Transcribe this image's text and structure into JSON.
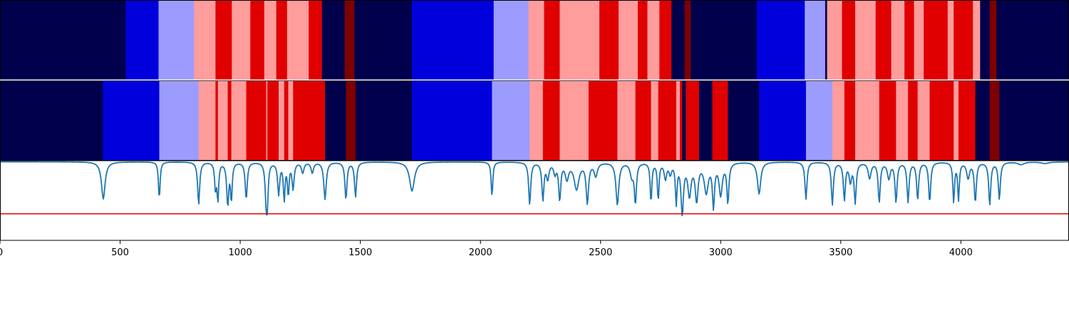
{
  "chart_data": [
    {
      "type": "heatmap",
      "title": "",
      "xlabel": "",
      "ylabel": "",
      "xlim": [
        0,
        4450
      ],
      "colors": {
        "0": "#00004c",
        "1": "#0000dd",
        "2": "#9c9cff",
        "3": "#ff9c9c",
        "4": "#e00000",
        "5": "#7f0000"
      },
      "segments": [
        [
          0,
          523,
          0
        ],
        [
          523,
          660,
          1
        ],
        [
          660,
          808,
          2
        ],
        [
          808,
          897,
          3
        ],
        [
          897,
          965,
          4
        ],
        [
          965,
          1042,
          3
        ],
        [
          1042,
          1100,
          4
        ],
        [
          1100,
          1150,
          3
        ],
        [
          1150,
          1195,
          4
        ],
        [
          1195,
          1285,
          3
        ],
        [
          1285,
          1340,
          4
        ],
        [
          1340,
          1435,
          0
        ],
        [
          1435,
          1475,
          5
        ],
        [
          1475,
          1715,
          0
        ],
        [
          1715,
          2055,
          1
        ],
        [
          2055,
          2200,
          2
        ],
        [
          2200,
          2265,
          3
        ],
        [
          2265,
          2330,
          4
        ],
        [
          2330,
          2495,
          3
        ],
        [
          2495,
          2575,
          4
        ],
        [
          2575,
          2655,
          3
        ],
        [
          2655,
          2695,
          4
        ],
        [
          2695,
          2745,
          3
        ],
        [
          2745,
          2795,
          4
        ],
        [
          2795,
          2850,
          0
        ],
        [
          2850,
          2875,
          5
        ],
        [
          2875,
          3150,
          0
        ],
        [
          3150,
          3350,
          1
        ],
        [
          3350,
          3435,
          2
        ],
        [
          3435,
          3443,
          0
        ],
        [
          3443,
          3505,
          3
        ],
        [
          3505,
          3560,
          4
        ],
        [
          3560,
          3645,
          3
        ],
        [
          3645,
          3710,
          4
        ],
        [
          3710,
          3765,
          3
        ],
        [
          3765,
          3805,
          4
        ],
        [
          3805,
          3845,
          3
        ],
        [
          3845,
          3945,
          4
        ],
        [
          3945,
          3970,
          3
        ],
        [
          3970,
          4050,
          4
        ],
        [
          4050,
          4080,
          3
        ],
        [
          4080,
          4120,
          0
        ],
        [
          4120,
          4148,
          5
        ],
        [
          4148,
          4450,
          0
        ]
      ]
    },
    {
      "type": "heatmap",
      "title": "",
      "xlabel": "",
      "ylabel": "",
      "xlim": [
        0,
        4450
      ],
      "segments": [
        [
          0,
          428,
          0
        ],
        [
          428,
          663,
          1
        ],
        [
          663,
          827,
          2
        ],
        [
          827,
          897,
          3
        ],
        [
          897,
          907,
          4
        ],
        [
          907,
          948,
          3
        ],
        [
          948,
          963,
          4
        ],
        [
          963,
          1025,
          3
        ],
        [
          1025,
          1108,
          4
        ],
        [
          1108,
          1113,
          3
        ],
        [
          1113,
          1160,
          4
        ],
        [
          1160,
          1183,
          3
        ],
        [
          1183,
          1200,
          4
        ],
        [
          1200,
          1220,
          3
        ],
        [
          1220,
          1353,
          4
        ],
        [
          1353,
          1440,
          0
        ],
        [
          1440,
          1480,
          5
        ],
        [
          1480,
          1715,
          0
        ],
        [
          1715,
          2048,
          1
        ],
        [
          2048,
          2205,
          2
        ],
        [
          2205,
          2260,
          3
        ],
        [
          2260,
          2330,
          4
        ],
        [
          2330,
          2450,
          3
        ],
        [
          2450,
          2570,
          4
        ],
        [
          2570,
          2645,
          3
        ],
        [
          2645,
          2710,
          4
        ],
        [
          2710,
          2740,
          3
        ],
        [
          2740,
          2815,
          4
        ],
        [
          2815,
          2830,
          3
        ],
        [
          2830,
          2840,
          4
        ],
        [
          2840,
          2855,
          0
        ],
        [
          2855,
          2910,
          4
        ],
        [
          2910,
          2965,
          0
        ],
        [
          2965,
          3030,
          4
        ],
        [
          3030,
          3160,
          0
        ],
        [
          3160,
          3355,
          1
        ],
        [
          3355,
          3465,
          2
        ],
        [
          3465,
          3515,
          3
        ],
        [
          3515,
          3560,
          4
        ],
        [
          3560,
          3660,
          3
        ],
        [
          3660,
          3730,
          4
        ],
        [
          3730,
          3780,
          3
        ],
        [
          3780,
          3820,
          4
        ],
        [
          3820,
          3870,
          3
        ],
        [
          3870,
          3970,
          4
        ],
        [
          3970,
          3990,
          3
        ],
        [
          3990,
          4060,
          4
        ],
        [
          4060,
          4120,
          0
        ],
        [
          4120,
          4160,
          5
        ],
        [
          4160,
          4450,
          0
        ]
      ]
    },
    {
      "type": "line",
      "title": "",
      "xlabel": "",
      "ylabel": "",
      "xlim": [
        0,
        4450
      ],
      "ylim": [
        -1.5,
        0.0
      ],
      "xticks": [
        "0",
        "500",
        "1000",
        "1500",
        "2000",
        "2500",
        "3000",
        "3500",
        "4000"
      ],
      "threshold": -1.0,
      "baseline": -0.02,
      "line_color": "#1f77b4",
      "threshold_color": "#e00000",
      "dips": [
        [
          430,
          0.7,
          9
        ],
        [
          663,
          0.7,
          4
        ],
        [
          827,
          0.8,
          5
        ],
        [
          897,
          0.5,
          4
        ],
        [
          907,
          0.7,
          4
        ],
        [
          948,
          0.8,
          5
        ],
        [
          963,
          0.7,
          4
        ],
        [
          1025,
          0.7,
          5
        ],
        [
          1108,
          0.7,
          5
        ],
        [
          1113,
          0.6,
          4
        ],
        [
          1160,
          0.6,
          5
        ],
        [
          1183,
          0.7,
          4
        ],
        [
          1200,
          0.6,
          4
        ],
        [
          1220,
          0.5,
          5
        ],
        [
          1260,
          0.2,
          6
        ],
        [
          1300,
          0.2,
          6
        ],
        [
          1353,
          0.7,
          6
        ],
        [
          1440,
          0.7,
          5
        ],
        [
          1480,
          0.65,
          5
        ],
        [
          1715,
          0.55,
          12
        ],
        [
          2048,
          0.65,
          4
        ],
        [
          2205,
          0.8,
          5
        ],
        [
          2260,
          0.7,
          5
        ],
        [
          2280,
          0.3,
          6
        ],
        [
          2310,
          0.2,
          6
        ],
        [
          2330,
          0.7,
          5
        ],
        [
          2360,
          0.3,
          8
        ],
        [
          2400,
          0.5,
          12
        ],
        [
          2445,
          0.75,
          6
        ],
        [
          2480,
          0.25,
          8
        ],
        [
          2570,
          0.8,
          7
        ],
        [
          2630,
          0.25,
          8
        ],
        [
          2645,
          0.75,
          5
        ],
        [
          2710,
          0.75,
          4
        ],
        [
          2740,
          0.7,
          4
        ],
        [
          2770,
          0.3,
          6
        ],
        [
          2790,
          0.2,
          6
        ],
        [
          2815,
          0.75,
          4
        ],
        [
          2840,
          0.95,
          6
        ],
        [
          2870,
          0.6,
          8
        ],
        [
          2900,
          0.7,
          7
        ],
        [
          2940,
          0.55,
          10
        ],
        [
          2970,
          0.8,
          5
        ],
        [
          3000,
          0.6,
          8
        ],
        [
          3030,
          0.75,
          5
        ],
        [
          3160,
          0.6,
          8
        ],
        [
          3355,
          0.7,
          5
        ],
        [
          3465,
          0.8,
          5
        ],
        [
          3515,
          0.7,
          5
        ],
        [
          3540,
          0.35,
          6
        ],
        [
          3560,
          0.75,
          5
        ],
        [
          3620,
          0.3,
          7
        ],
        [
          3660,
          0.75,
          5
        ],
        [
          3700,
          0.3,
          7
        ],
        [
          3730,
          0.75,
          5
        ],
        [
          3780,
          0.75,
          5
        ],
        [
          3820,
          0.7,
          5
        ],
        [
          3870,
          0.75,
          5
        ],
        [
          3970,
          0.75,
          4
        ],
        [
          3990,
          0.7,
          4
        ],
        [
          4030,
          0.3,
          7
        ],
        [
          4060,
          0.75,
          5
        ],
        [
          4120,
          0.8,
          5
        ],
        [
          4160,
          0.7,
          5
        ],
        [
          4250,
          0.05,
          15
        ],
        [
          4350,
          0.03,
          20
        ]
      ]
    }
  ]
}
